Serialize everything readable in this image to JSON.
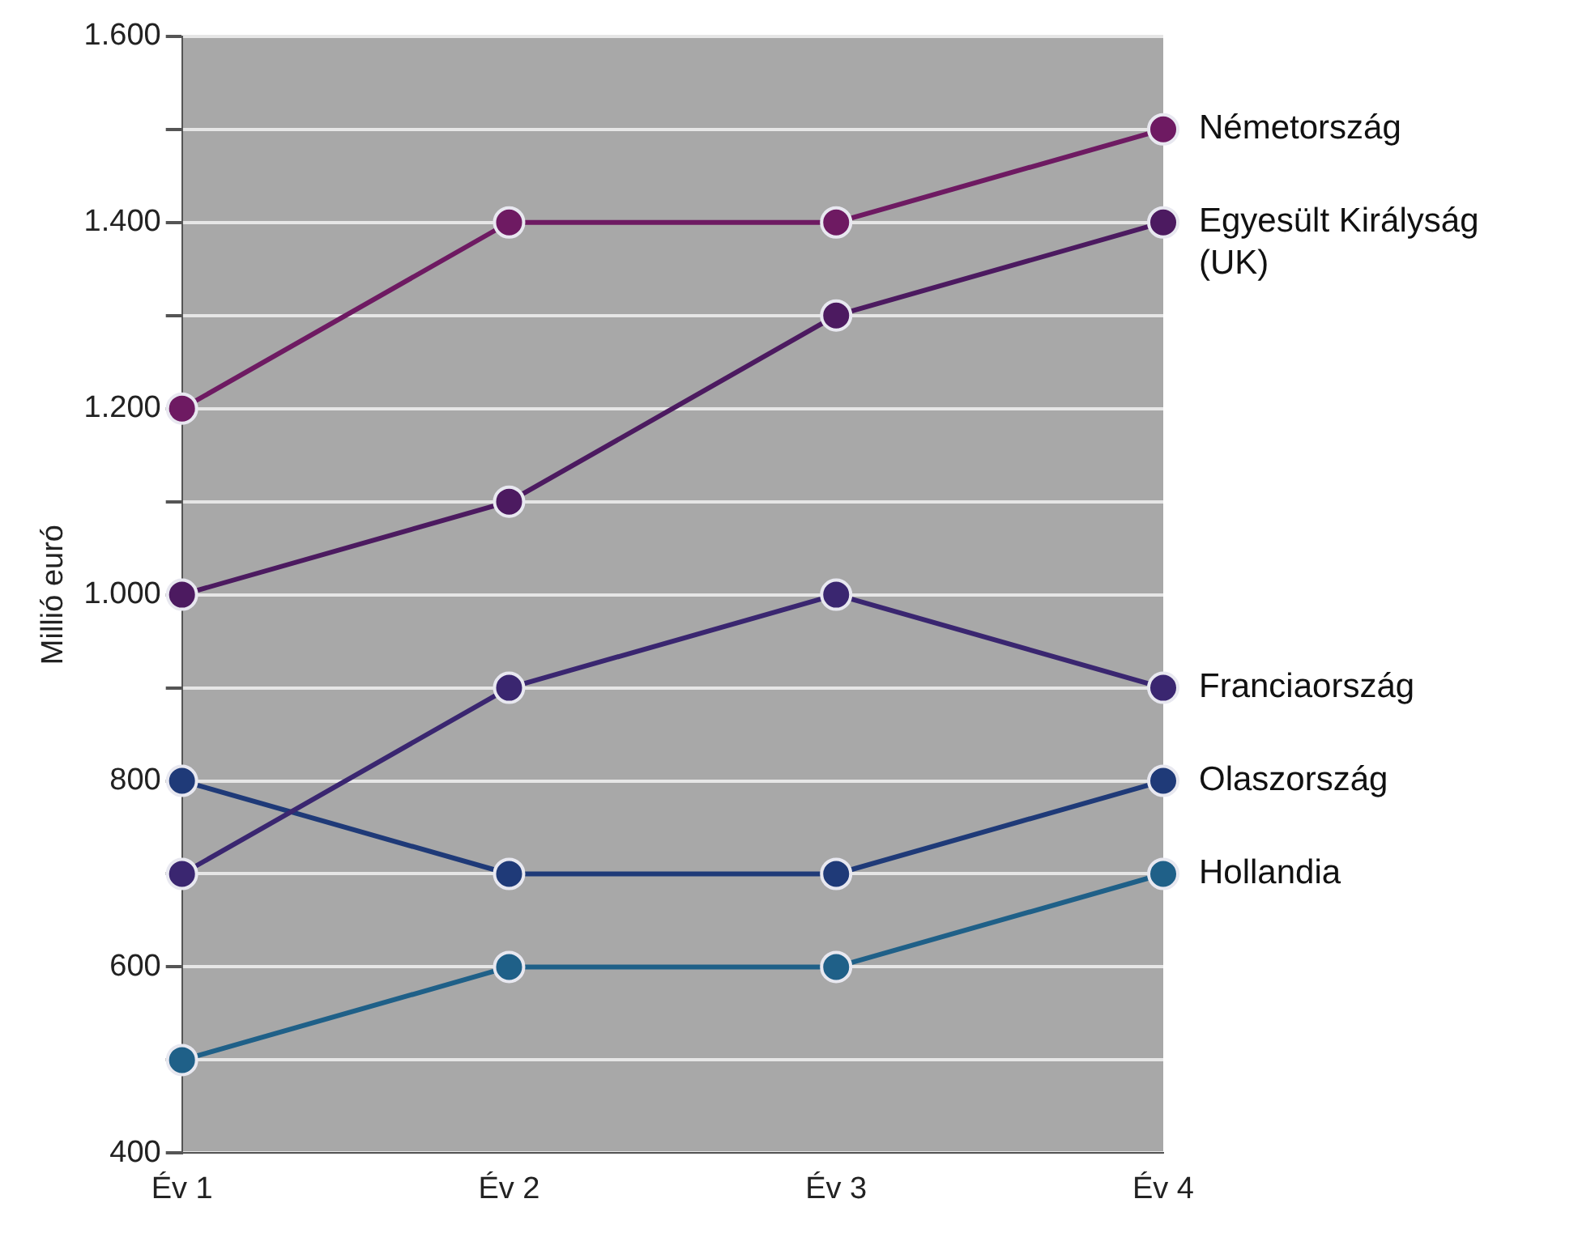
{
  "chart_data": {
    "type": "line",
    "ylabel": "Millió euró",
    "categories": [
      "Év 1",
      "Év 2",
      "Év 3",
      "Év 4"
    ],
    "series": [
      {
        "name": "Németország",
        "color": "#6e1a62",
        "values": [
          1200,
          1400,
          1400,
          1500
        ]
      },
      {
        "name": "Egyesült Királyság (UK)",
        "color": "#4c1a60",
        "values": [
          1000,
          1100,
          1300,
          1400
        ]
      },
      {
        "name": "Franciaország",
        "color": "#3a2670",
        "values": [
          700,
          900,
          1000,
          900
        ]
      },
      {
        "name": "Olaszország",
        "color": "#1f3a78",
        "values": [
          800,
          700,
          700,
          800
        ]
      },
      {
        "name": "Hollandia",
        "color": "#1f6088",
        "values": [
          500,
          600,
          600,
          700
        ]
      }
    ],
    "ylim": [
      400,
      1600
    ],
    "yticks": [
      400,
      {
        "value": 500,
        "label": null
      },
      600,
      {
        "value": 700,
        "label": null
      },
      800,
      {
        "value": 900,
        "label": null
      },
      {
        "value": 1000,
        "label": "1.000"
      },
      {
        "value": 1100,
        "label": null
      },
      {
        "value": 1200,
        "label": "1.200"
      },
      {
        "value": 1300,
        "label": null
      },
      {
        "value": 1400,
        "label": "1.400"
      },
      {
        "value": 1500,
        "label": null
      },
      {
        "value": 1600,
        "label": "1.600"
      }
    ],
    "grid": "y",
    "marker": "circle",
    "line_style": "solid"
  }
}
